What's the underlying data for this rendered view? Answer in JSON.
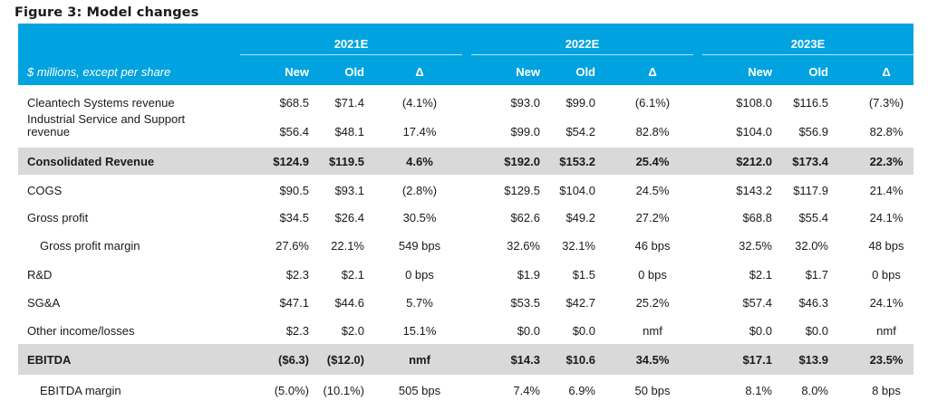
{
  "title": "Figure 3: Model changes",
  "units_label": "$ millions, except per share",
  "years": [
    "2021E",
    "2022E",
    "2023E"
  ],
  "sub_headers": [
    "New",
    "Old",
    "Δ"
  ],
  "rows": [
    {
      "label_lines": [
        "Cleantech Systems revenue"
      ],
      "values": [
        "$68.5",
        "$71.4",
        "(4.1%)",
        "$93.0",
        "$99.0",
        "(6.1%)",
        "$108.0",
        "$116.5",
        "(7.3%)"
      ]
    },
    {
      "label_lines": [
        "Industrial Service and Support",
        "revenue"
      ],
      "values": [
        "$56.4",
        "$48.1",
        "17.4%",
        "$99.0",
        "$54.2",
        "82.8%",
        "$104.0",
        "$56.9",
        "82.8%"
      ]
    },
    {
      "label_lines": [
        "Consolidated Revenue"
      ],
      "shaded": true,
      "values": [
        "$124.9",
        "$119.5",
        "4.6%",
        "$192.0",
        "$153.2",
        "25.4%",
        "$212.0",
        "$173.4",
        "22.3%"
      ]
    },
    {
      "label_lines": [
        "COGS"
      ],
      "values": [
        "$90.5",
        "$93.1",
        "(2.8%)",
        "$129.5",
        "$104.0",
        "24.5%",
        "$143.2",
        "$117.9",
        "21.4%"
      ]
    },
    {
      "label_lines": [
        "Gross profit"
      ],
      "values": [
        "$34.5",
        "$26.4",
        "30.5%",
        "$62.6",
        "$49.2",
        "27.2%",
        "$68.8",
        "$55.4",
        "24.1%"
      ]
    },
    {
      "label_lines": [
        "Gross profit margin"
      ],
      "indent": true,
      "values": [
        "27.6%",
        "22.1%",
        "549 bps",
        "32.6%",
        "32.1%",
        "46 bps",
        "32.5%",
        "32.0%",
        "48 bps"
      ]
    },
    {
      "label_lines": [
        "R&D"
      ],
      "values": [
        "$2.3",
        "$2.1",
        "0 bps",
        "$1.9",
        "$1.5",
        "0 bps",
        "$2.1",
        "$1.7",
        "0 bps"
      ]
    },
    {
      "label_lines": [
        "SG&A"
      ],
      "values": [
        "$47.1",
        "$44.6",
        "5.7%",
        "$53.5",
        "$42.7",
        "25.2%",
        "$57.4",
        "$46.3",
        "24.1%"
      ]
    },
    {
      "label_lines": [
        "Other income/losses"
      ],
      "values": [
        "$2.3",
        "$2.0",
        "15.1%",
        "$0.0",
        "$0.0",
        "nmf",
        "$0.0",
        "$0.0",
        "nmf"
      ]
    },
    {
      "label_lines": [
        "EBITDA"
      ],
      "shaded": true,
      "values": [
        "($6.3)",
        "($12.0)",
        "nmf",
        "$14.3",
        "$10.6",
        "34.5%",
        "$17.1",
        "$13.9",
        "23.5%"
      ]
    },
    {
      "label_lines": [
        "EBITDA margin"
      ],
      "indent": true,
      "values": [
        "(5.0%)",
        "(10.1%)",
        "505 bps",
        "7.4%",
        "6.9%",
        "50 bps",
        "8.1%",
        "8.0%",
        "8 bps"
      ]
    }
  ]
}
